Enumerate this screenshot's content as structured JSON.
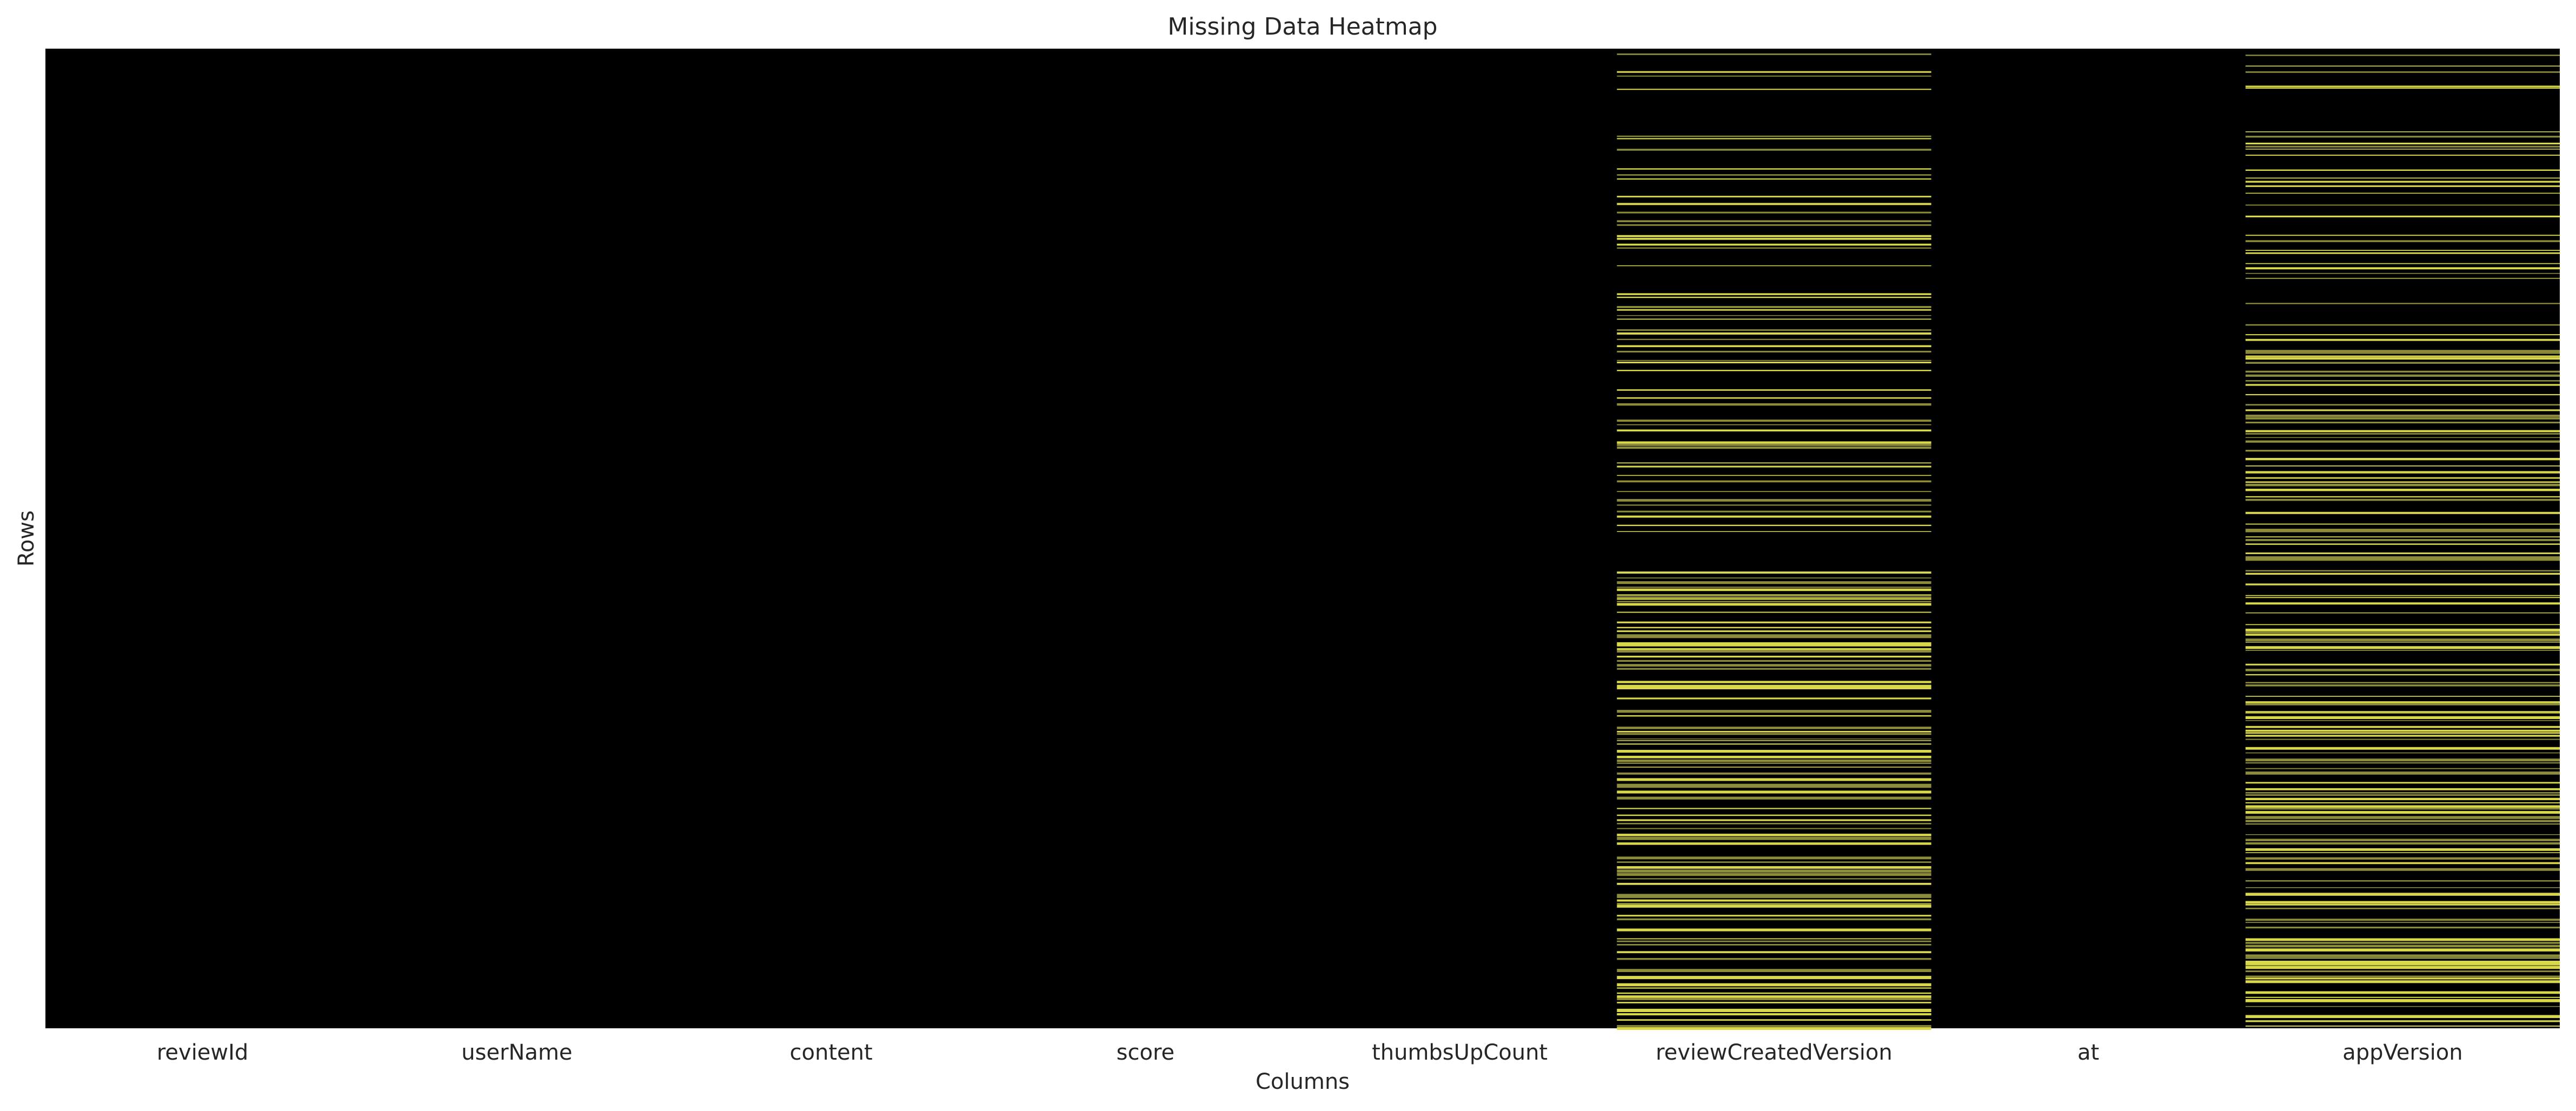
{
  "chart_data": {
    "type": "heatmap",
    "title": "Missing Data Heatmap",
    "xlabel": "Columns",
    "ylabel": "Rows",
    "columns": [
      "reviewId",
      "userName",
      "content",
      "score",
      "thumbsUpCount",
      "reviewCreatedVersion",
      "at",
      "appVersion"
    ],
    "missing_columns": [
      "reviewCreatedVersion",
      "appVersion"
    ],
    "colorbar": false,
    "y_tick_labels": false,
    "colors": {
      "present": "#000000",
      "missing": "#d8d84a",
      "missing_dim": "#8c8c3a",
      "text": "#262626",
      "background": "#ffffff"
    }
  }
}
